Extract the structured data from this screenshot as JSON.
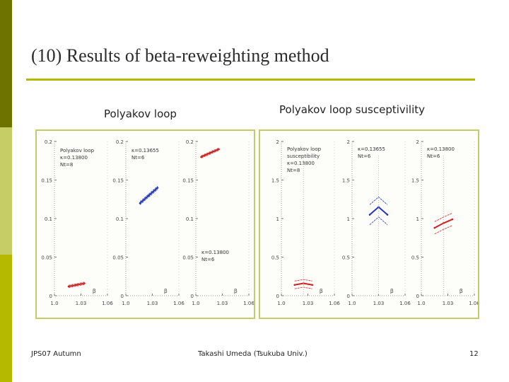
{
  "title": "(10) Results of beta-reweighting method",
  "colors": {
    "band_top": "#6e7300",
    "band_mid": "#c7cd66",
    "band_bot": "#b5ba00",
    "rule": "#b5ba00",
    "frame": "#c4cc6a",
    "red": "#cc2222",
    "blue": "#2233bb"
  },
  "labels": {
    "polyakov_loop": "Polyakov loop",
    "susceptibility": "Polyakov loop susceptivility"
  },
  "footer": {
    "left": "JPS07 Autumn",
    "center": "Takashi Umeda (Tsukuba Univ.)",
    "page": "12"
  },
  "chart_data": [
    {
      "type": "line",
      "title": "Polyakov loop",
      "panels": [
        {
          "ylim": [
            0,
            0.2
          ],
          "yticks": [
            "0.2",
            "0.15",
            "0.1",
            "0.05",
            "0"
          ],
          "xticks": [
            "1.0",
            "1.03",
            "1.06"
          ],
          "xlim": [
            1.0,
            1.06
          ],
          "xlabel": "β",
          "annotations": [
            "Polyakov loop",
            "κ=0.13800",
            "Nt=8"
          ],
          "series": [
            {
              "name": "κ=0.13800 Nt=8",
              "color": "red",
              "x": [
                1.016,
                1.025,
                1.034
              ],
              "y": [
                0.012,
                0.014,
                0.016
              ],
              "band": 0.0015
            }
          ]
        },
        {
          "ylim": [
            0,
            0.2
          ],
          "yticks": [
            "0.2",
            "0.15",
            "0.1",
            "0.05",
            "0"
          ],
          "xticks": [
            "1.0",
            "1.03",
            "1.06"
          ],
          "xlim": [
            1.0,
            1.06
          ],
          "xlabel": "β",
          "annotations": [
            "κ=0.13655",
            "Nt=6"
          ],
          "series": [
            {
              "name": "κ=0.13655 Nt=6",
              "color": "blue",
              "x": [
                1.016,
                1.026,
                1.036
              ],
              "y": [
                0.12,
                0.13,
                0.14
              ],
              "band": 0.002
            }
          ]
        },
        {
          "ylim": [
            0,
            0.2
          ],
          "yticks": [
            "0.2",
            "0.15",
            "0.1",
            "0.05",
            "0"
          ],
          "xticks": [
            "1.0",
            "1.03",
            "1.06"
          ],
          "xlim": [
            1.0,
            1.06
          ],
          "xlabel": "β",
          "annotations": [
            "κ=0.13800",
            "Nt=6"
          ],
          "series": [
            {
              "name": "κ=0.13800 Nt=6",
              "color": "red",
              "x": [
                1.006,
                1.016,
                1.026
              ],
              "y": [
                0.18,
                0.185,
                0.19
              ],
              "band": 0.0015
            }
          ]
        }
      ]
    },
    {
      "type": "line",
      "title": "Polyakov loop susceptivility",
      "panels": [
        {
          "ylim": [
            0,
            2
          ],
          "yticks": [
            "2",
            "1.5",
            "1",
            "0.5",
            "0"
          ],
          "xticks": [
            "1.0",
            "1.03",
            "1.06"
          ],
          "xlim": [
            1.0,
            1.06
          ],
          "xlabel": "β",
          "annotations": [
            "Polyakov loop",
            "susceptibility",
            "κ=0.13800",
            "Nt=8"
          ],
          "series": [
            {
              "name": "κ=0.13800 Nt=8",
              "color": "red",
              "x": [
                1.015,
                1.025,
                1.035
              ],
              "y": [
                0.14,
                0.16,
                0.14
              ],
              "band": 0.05
            }
          ]
        },
        {
          "ylim": [
            0,
            2
          ],
          "yticks": [
            "2",
            "1.5",
            "1",
            "0.5",
            "0"
          ],
          "xticks": [
            "1.0",
            "1.03",
            "1.06"
          ],
          "xlim": [
            1.0,
            1.06
          ],
          "xlabel": "β",
          "annotations": [
            "κ=0.13655",
            "Nt=6"
          ],
          "series": [
            {
              "name": "κ=0.13655 Nt=6",
              "color": "blue",
              "x": [
                1.02,
                1.03,
                1.04
              ],
              "y": [
                1.05,
                1.15,
                1.05
              ],
              "band": 0.13
            }
          ]
        },
        {
          "ylim": [
            0,
            2
          ],
          "yticks": [
            "2",
            "1.5",
            "1",
            "0.5",
            "0"
          ],
          "xticks": [
            "1.0",
            "1.03",
            "1.06"
          ],
          "xlim": [
            1.0,
            1.06
          ],
          "xlabel": "β",
          "annotations": [
            "κ=0.13800",
            "Nt=6"
          ],
          "series": [
            {
              "name": "κ=0.13800 Nt=6",
              "color": "red",
              "x": [
                1.015,
                1.025,
                1.035
              ],
              "y": [
                0.88,
                0.94,
                0.99
              ],
              "band": 0.08
            }
          ]
        }
      ]
    }
  ]
}
